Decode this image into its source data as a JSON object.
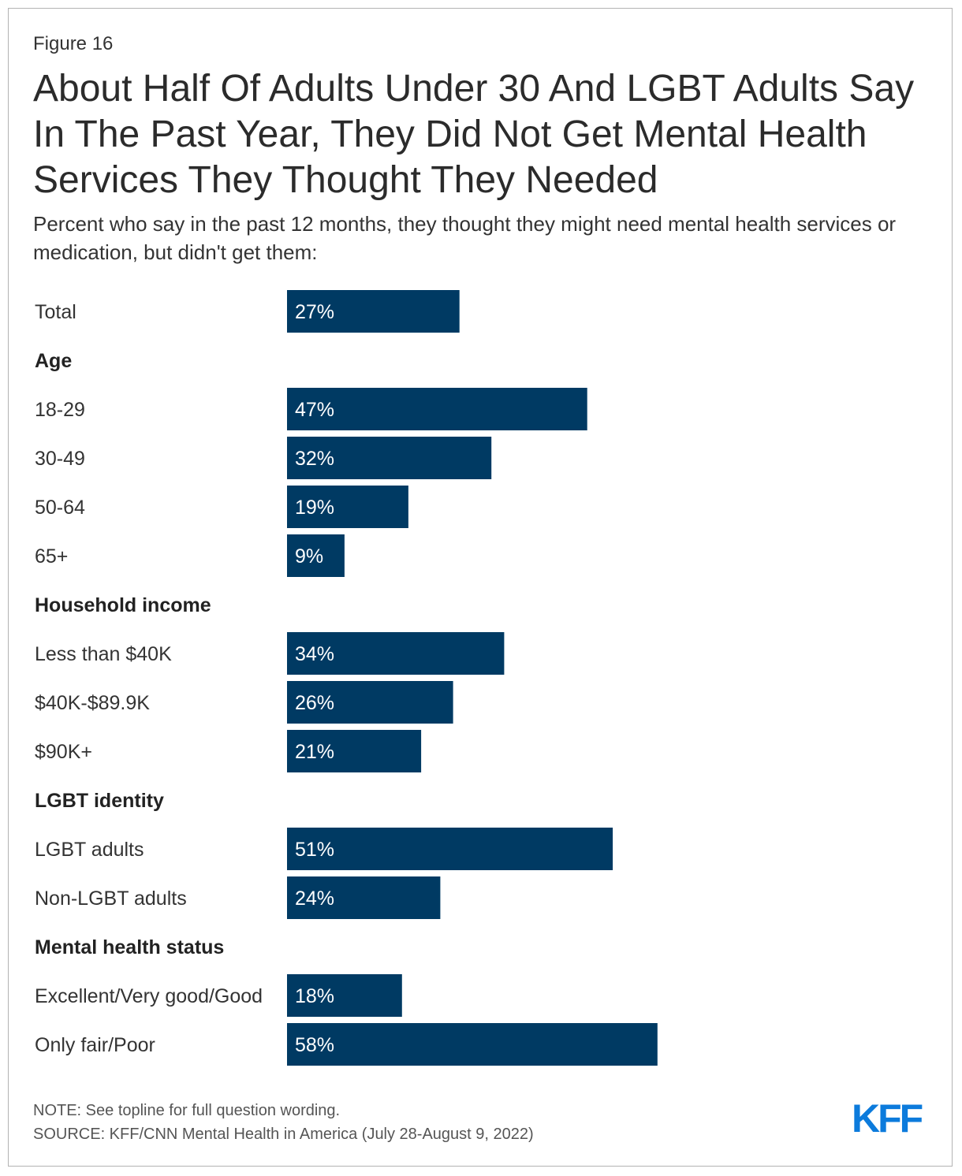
{
  "figure_label": "Figure 16",
  "title": "About Half Of Adults Under 30 And LGBT Adults Say In The Past Year, They Did Not Get Mental Health Services They Thought They Needed",
  "subtitle": "Percent who say in the past 12 months, they thought they might need mental health services or medication, but didn't get them:",
  "note": "NOTE: See topline for full question wording.",
  "source": "SOURCE: KFF/CNN Mental Health in America (July 28-August 9, 2022)",
  "logo_text": "KFF",
  "colors": {
    "bar": "#003a63",
    "bar_label": "#ffffff",
    "logo": "#0c7bdc"
  },
  "chart_data": {
    "type": "bar",
    "orientation": "horizontal",
    "title": "About Half Of Adults Under 30 And LGBT Adults Say In The Past Year, They Did Not Get Mental Health Services They Thought They Needed",
    "xlabel": "",
    "ylabel": "",
    "xlim": [
      0,
      100
    ],
    "value_suffix": "%",
    "rows": [
      {
        "kind": "bar",
        "label": "Total",
        "value": 27
      },
      {
        "kind": "header",
        "label": "Age"
      },
      {
        "kind": "bar",
        "label": "18-29",
        "value": 47
      },
      {
        "kind": "bar",
        "label": "30-49",
        "value": 32
      },
      {
        "kind": "bar",
        "label": "50-64",
        "value": 19
      },
      {
        "kind": "bar",
        "label": "65+",
        "value": 9
      },
      {
        "kind": "header",
        "label": "Household income"
      },
      {
        "kind": "bar",
        "label": "Less than $40K",
        "value": 34
      },
      {
        "kind": "bar",
        "label": "$40K-$89.9K",
        "value": 26
      },
      {
        "kind": "bar",
        "label": "$90K+",
        "value": 21
      },
      {
        "kind": "header",
        "label": "LGBT identity"
      },
      {
        "kind": "bar",
        "label": "LGBT adults",
        "value": 51
      },
      {
        "kind": "bar",
        "label": "Non-LGBT adults",
        "value": 24
      },
      {
        "kind": "header",
        "label": "Mental health status"
      },
      {
        "kind": "bar",
        "label": "Excellent/Very good/Good",
        "value": 18
      },
      {
        "kind": "bar",
        "label": "Only fair/Poor",
        "value": 58
      }
    ]
  }
}
